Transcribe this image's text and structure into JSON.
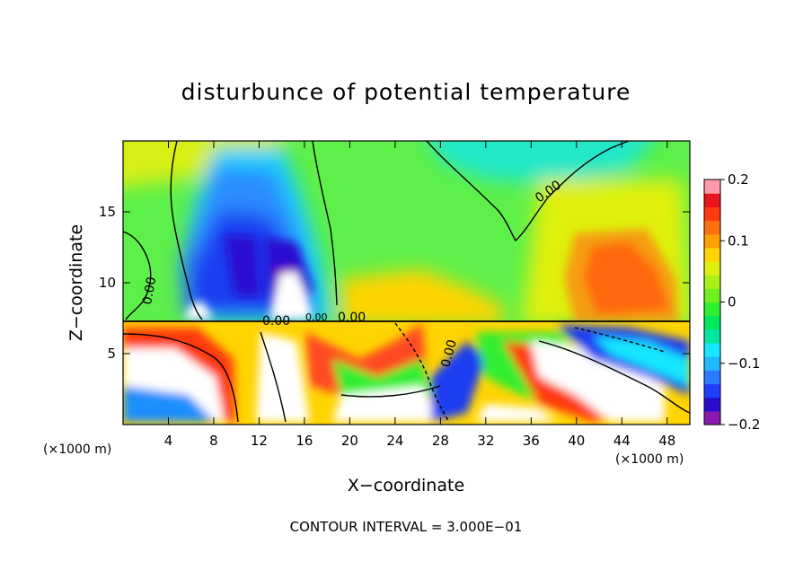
{
  "chart_data": {
    "type": "heatmap",
    "title": "disturbunce of potential temperature",
    "xlabel": "X−coordinate",
    "ylabel": "Z−coordinate",
    "x_unit_left": "(×1000 m)",
    "x_unit_right": "(×1000 m)",
    "xlim": [
      0,
      50
    ],
    "ylim": [
      0,
      20
    ],
    "x_ticks": [
      4,
      8,
      12,
      16,
      20,
      24,
      28,
      32,
      36,
      40,
      44,
      48
    ],
    "x_tick_labels": [
      "4",
      "8",
      "12",
      "16",
      "20",
      "24",
      "28",
      "32",
      "36",
      "40",
      "44",
      "48"
    ],
    "y_ticks": [
      5,
      10,
      15
    ],
    "y_tick_labels": [
      "5",
      "10",
      "15"
    ],
    "colorbar": {
      "range": [
        -0.2,
        0.2
      ],
      "ticks": [
        0.2,
        0.1,
        0,
        -0.1,
        -0.2
      ],
      "tick_labels": [
        "0.2",
        "0.1",
        "0",
        "−0.1",
        "−0.2"
      ],
      "colors": [
        "#8a1ab0",
        "#2a0bd0",
        "#1f3fff",
        "#2a7bff",
        "#22b6ff",
        "#16e6ff",
        "#00e6a0",
        "#00e860",
        "#30ee30",
        "#70f020",
        "#a8f018",
        "#dff010",
        "#ffd400",
        "#ffa000",
        "#ff7010",
        "#ff3a10",
        "#e8141e",
        "#ff9aa8"
      ]
    },
    "contour_labels": [
      "0.00",
      "0.00",
      "0.00",
      "0.00",
      "0.00",
      "0.00"
    ],
    "contour_interval_text": "CONTOUR INTERVAL = 3.000E−01",
    "grid": false
  }
}
